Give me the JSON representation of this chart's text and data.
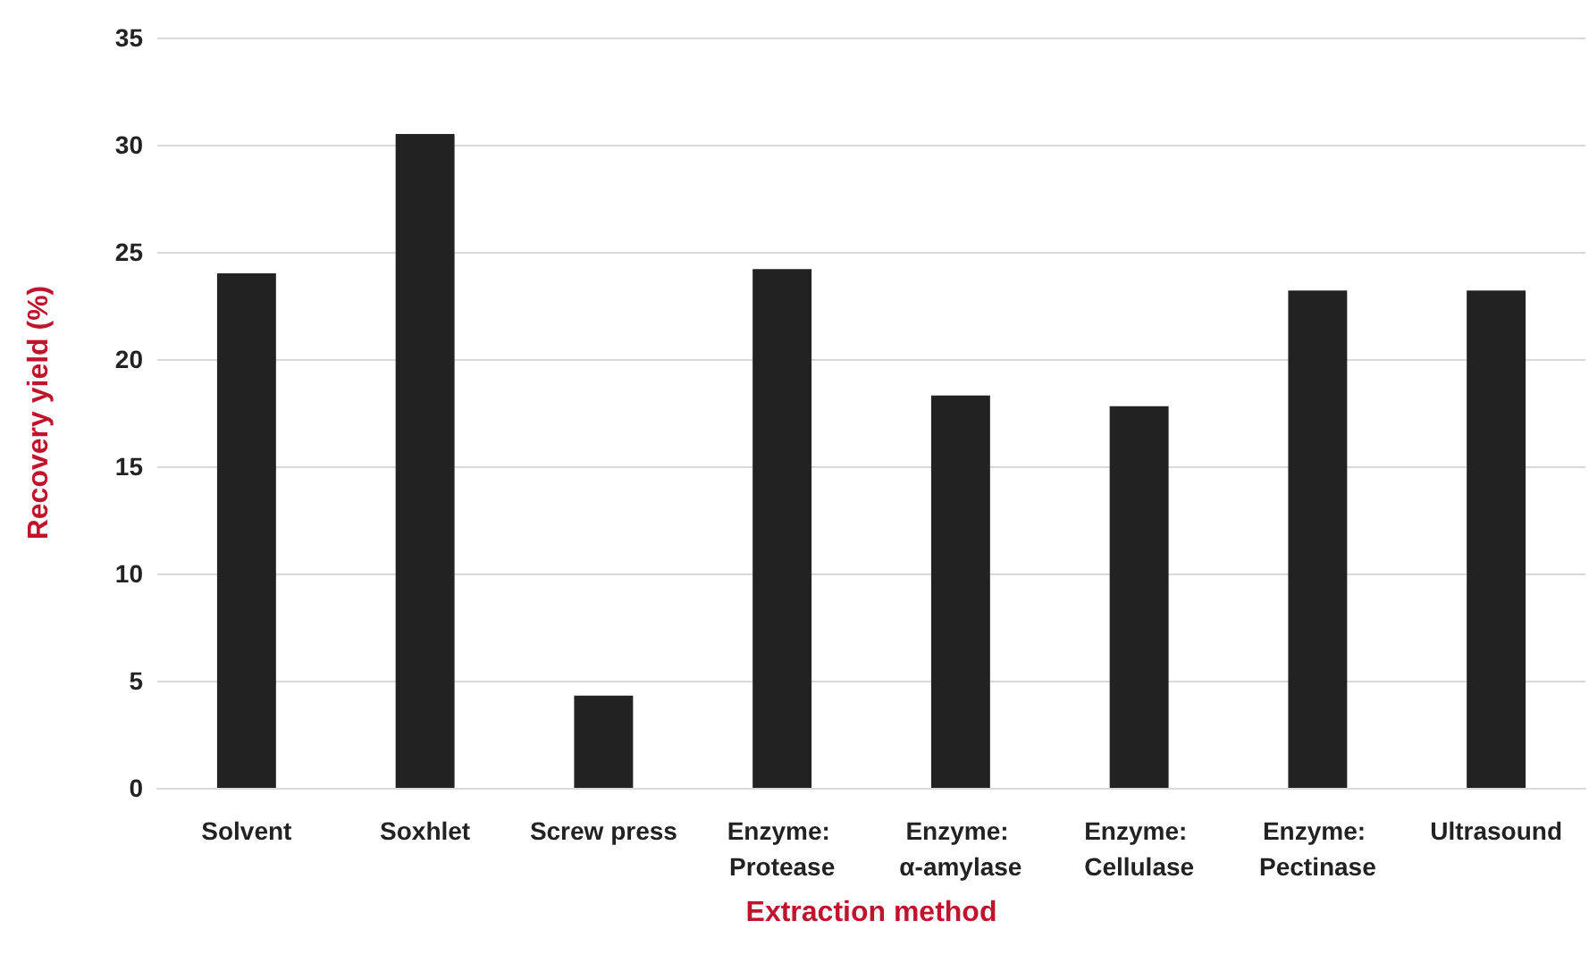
{
  "chart_data": {
    "type": "bar",
    "xlabel": "Extraction method",
    "ylabel": "Recovery yield (%)",
    "categories": [
      "Solvent",
      "Soxhlet",
      "Screw press",
      "Enzyme: Protease",
      "Enzyme: α-amylase",
      "Enzyme: Cellulase",
      "Enzyme: Pectinase",
      "Ultrasound"
    ],
    "values": [
      24.0,
      30.5,
      4.3,
      24.2,
      18.3,
      17.8,
      23.2,
      23.2
    ],
    "color": "#222222",
    "ylim": [
      0,
      35
    ],
    "yticks": [
      0,
      5,
      10,
      15,
      20,
      25,
      30,
      35
    ],
    "grid": "y"
  }
}
